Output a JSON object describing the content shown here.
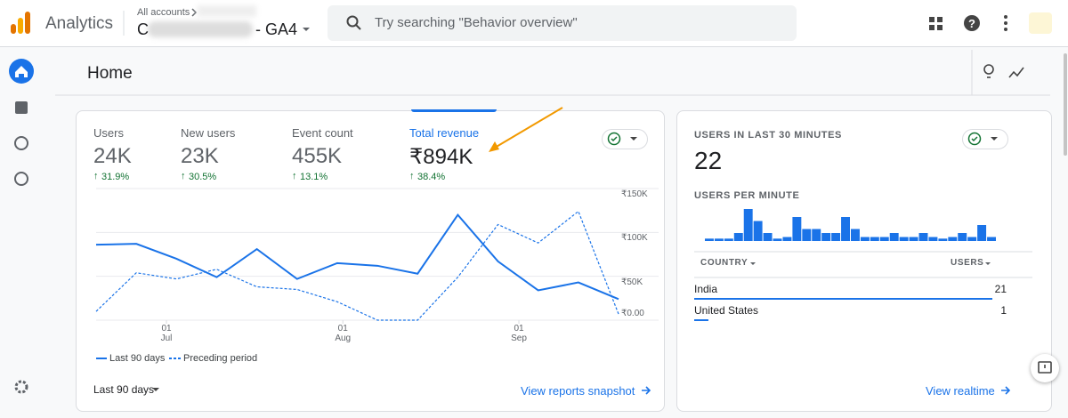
{
  "header": {
    "product": "Analytics",
    "breadcrumb": "All accounts",
    "account_name": "C",
    "property_suffix": "- GA4",
    "search_placeholder": "Try searching \"Behavior overview\""
  },
  "page_title": "Home",
  "metrics": [
    {
      "label": "Users",
      "value": "24K",
      "change": "31.9%"
    },
    {
      "label": "New users",
      "value": "23K",
      "change": "30.5%"
    },
    {
      "label": "Event count",
      "value": "455K",
      "change": "13.1%"
    },
    {
      "label": "Total revenue",
      "value": "₹894K",
      "change": "38.4%"
    }
  ],
  "chart_data": [
    {
      "type": "line",
      "categories": [
        null,
        null,
        null,
        null,
        null,
        null,
        null,
        null,
        null,
        null,
        null,
        null,
        null,
        null
      ],
      "xticks": [
        {
          "value": 1.75,
          "label": "01 Jul"
        },
        {
          "value": 6.14,
          "label": "01 Aug"
        },
        {
          "value": 10.52,
          "label": "01 Sep"
        }
      ],
      "ylim": [
        0,
        150000
      ],
      "yticks": [
        {
          "value": 0,
          "label": "₹0.00"
        },
        {
          "value": 50000,
          "label": "₹50K"
        },
        {
          "value": 100000,
          "label": "₹100K"
        },
        {
          "value": 150000,
          "label": "₹150K"
        }
      ],
      "grid": true,
      "series": [
        {
          "name": "Last 90 days",
          "color": "#1a73e8",
          "dashed": false,
          "values": [
            86000,
            87000,
            70000,
            49000,
            81000,
            47000,
            65000,
            62000,
            53000,
            120000,
            67000,
            34000,
            43000,
            24000
          ]
        },
        {
          "name": "Preceding period",
          "color": "#1a73e8",
          "dashed": true,
          "values": [
            10000,
            54000,
            47000,
            58000,
            38000,
            35000,
            21000,
            0,
            0,
            49000,
            109000,
            88000,
            124000,
            7000
          ]
        }
      ]
    },
    {
      "type": "bar",
      "title": "USERS PER MINUTE",
      "color": "#1a73e8",
      "ylim": [
        0,
        4
      ],
      "values": [
        0.3,
        0.3,
        0.3,
        1,
        4,
        2.5,
        1,
        0.3,
        0.5,
        3,
        1.5,
        1.5,
        1,
        1,
        3,
        1.5,
        0.5,
        0.5,
        0.5,
        1,
        0.5,
        0.5,
        1,
        0.5,
        0.3,
        0.5,
        1,
        0.5,
        2,
        0.5
      ]
    }
  ],
  "footer": {
    "date_range": "Last 90 days",
    "link": "View reports snapshot"
  },
  "realtime": {
    "title": "USERS IN LAST 30 MINUTES",
    "total": "22",
    "table": {
      "headers": [
        "COUNTRY",
        "USERS"
      ],
      "rows": [
        {
          "country": "India",
          "users": 21
        },
        {
          "country": "United States",
          "users": 1
        }
      ]
    },
    "link": "View realtime"
  }
}
